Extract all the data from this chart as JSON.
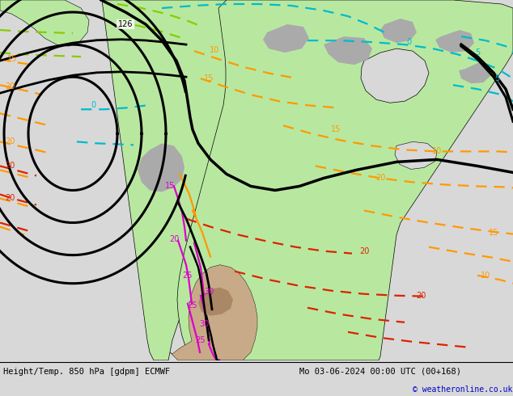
{
  "title_left": "Height/Temp. 850 hPa [gdpm] ECMWF",
  "title_right": "Mo 03-06-2024 00:00 UTC (00+168)",
  "copyright": "© weatheronline.co.uk",
  "bg_color": "#d8d8d8",
  "land_green": "#b8e8a0",
  "land_gray": "#aaaaaa",
  "ocean": "#d8d8d8",
  "white": "#ffffff",
  "figsize": [
    6.34,
    4.9
  ],
  "dpi": 100,
  "map_bg": "#d0d0d0"
}
